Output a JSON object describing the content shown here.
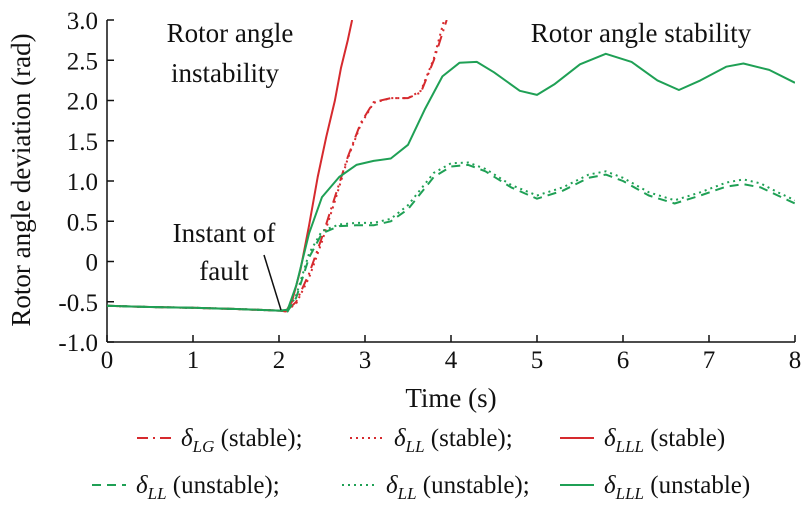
{
  "chart_data": {
    "type": "line",
    "xlabel": "Time (s)",
    "ylabel": "Rotor angle deviation (rad)",
    "xlim": [
      0,
      8
    ],
    "ylim": [
      -1.0,
      3.0
    ],
    "x_ticks": [
      "0",
      "1",
      "2",
      "3",
      "4",
      "5",
      "6",
      "7",
      "8"
    ],
    "y_ticks": [
      "-1.0",
      "-0.5",
      "0",
      "0.5",
      "1.0",
      "1.5",
      "2.0",
      "2.5",
      "3.0"
    ],
    "grid": false,
    "annotations": {
      "instability": [
        "Rotor angle",
        "instability"
      ],
      "stability": "Rotor angle stability",
      "fault": [
        "Instant of",
        "fault"
      ]
    },
    "series": [
      {
        "symbol": "δ",
        "sub": "LG",
        "suffix": " (stable);",
        "color": "#d62a2e",
        "dash": "dashdot",
        "points": [
          [
            0,
            -0.55
          ],
          [
            0.5,
            -0.565
          ],
          [
            1,
            -0.575
          ],
          [
            1.5,
            -0.59
          ],
          [
            2.0,
            -0.61
          ],
          [
            2.08,
            -0.62
          ],
          [
            2.2,
            -0.5
          ],
          [
            2.35,
            -0.15
          ],
          [
            2.5,
            0.3
          ],
          [
            2.65,
            0.8
          ],
          [
            2.8,
            1.3
          ],
          [
            2.95,
            1.72
          ],
          [
            3.1,
            1.98
          ],
          [
            3.3,
            2.03
          ],
          [
            3.5,
            2.03
          ],
          [
            3.65,
            2.1
          ],
          [
            3.8,
            2.5
          ],
          [
            3.95,
            3.0
          ]
        ]
      },
      {
        "symbol": "δ",
        "sub": "LL",
        "suffix": " (stable);",
        "color": "#d62a2e",
        "dash": "dotted",
        "points": [
          [
            0,
            -0.55
          ],
          [
            0.5,
            -0.565
          ],
          [
            1,
            -0.575
          ],
          [
            1.5,
            -0.59
          ],
          [
            2.0,
            -0.61
          ],
          [
            2.08,
            -0.62
          ],
          [
            2.2,
            -0.52
          ],
          [
            2.35,
            -0.2
          ],
          [
            2.5,
            0.25
          ],
          [
            2.65,
            0.75
          ],
          [
            2.8,
            1.28
          ],
          [
            2.95,
            1.7
          ],
          [
            3.1,
            1.97
          ],
          [
            3.3,
            2.03
          ],
          [
            3.5,
            2.03
          ],
          [
            3.65,
            2.12
          ],
          [
            3.8,
            2.52
          ],
          [
            3.92,
            3.0
          ]
        ]
      },
      {
        "symbol": "δ",
        "sub": "LLL",
        "suffix": " (stable)",
        "color": "#d62a2e",
        "dash": "solid",
        "points": [
          [
            0,
            -0.55
          ],
          [
            0.5,
            -0.565
          ],
          [
            1,
            -0.575
          ],
          [
            1.5,
            -0.59
          ],
          [
            2.0,
            -0.61
          ],
          [
            2.08,
            -0.62
          ],
          [
            2.15,
            -0.5
          ],
          [
            2.25,
            -0.1
          ],
          [
            2.35,
            0.45
          ],
          [
            2.45,
            1.05
          ],
          [
            2.55,
            1.55
          ],
          [
            2.65,
            2.0
          ],
          [
            2.72,
            2.4
          ],
          [
            2.8,
            2.75
          ],
          [
            2.85,
            3.0
          ]
        ]
      },
      {
        "symbol": "δ",
        "sub": "LL",
        "suffix": " (unstable);",
        "color": "#1fa055",
        "dash": "dashed",
        "points": [
          [
            0,
            -0.55
          ],
          [
            0.5,
            -0.565
          ],
          [
            1,
            -0.575
          ],
          [
            1.5,
            -0.59
          ],
          [
            2.0,
            -0.61
          ],
          [
            2.1,
            -0.62
          ],
          [
            2.2,
            -0.45
          ],
          [
            2.35,
            0.05
          ],
          [
            2.5,
            0.35
          ],
          [
            2.7,
            0.44
          ],
          [
            2.9,
            0.45
          ],
          [
            3.1,
            0.45
          ],
          [
            3.3,
            0.5
          ],
          [
            3.5,
            0.65
          ],
          [
            3.8,
            1.05
          ],
          [
            4.0,
            1.18
          ],
          [
            4.2,
            1.2
          ],
          [
            4.4,
            1.12
          ],
          [
            4.7,
            0.92
          ],
          [
            5.0,
            0.78
          ],
          [
            5.3,
            0.88
          ],
          [
            5.6,
            1.04
          ],
          [
            5.8,
            1.08
          ],
          [
            6.0,
            1.0
          ],
          [
            6.3,
            0.82
          ],
          [
            6.6,
            0.72
          ],
          [
            6.9,
            0.82
          ],
          [
            7.2,
            0.93
          ],
          [
            7.4,
            0.96
          ],
          [
            7.6,
            0.92
          ],
          [
            7.8,
            0.82
          ],
          [
            8.0,
            0.72
          ]
        ]
      },
      {
        "symbol": "δ",
        "sub": "LL",
        "suffix": " (unstable);",
        "color": "#1fa055",
        "dash": "dotted",
        "points": [
          [
            0,
            -0.55
          ],
          [
            0.5,
            -0.565
          ],
          [
            1,
            -0.575
          ],
          [
            1.5,
            -0.59
          ],
          [
            2.0,
            -0.61
          ],
          [
            2.1,
            -0.62
          ],
          [
            2.2,
            -0.42
          ],
          [
            2.35,
            0.1
          ],
          [
            2.5,
            0.38
          ],
          [
            2.7,
            0.46
          ],
          [
            2.9,
            0.48
          ],
          [
            3.1,
            0.48
          ],
          [
            3.3,
            0.53
          ],
          [
            3.5,
            0.7
          ],
          [
            3.8,
            1.1
          ],
          [
            4.0,
            1.22
          ],
          [
            4.2,
            1.23
          ],
          [
            4.4,
            1.15
          ],
          [
            4.7,
            0.95
          ],
          [
            5.0,
            0.82
          ],
          [
            5.3,
            0.92
          ],
          [
            5.6,
            1.08
          ],
          [
            5.8,
            1.12
          ],
          [
            6.0,
            1.04
          ],
          [
            6.3,
            0.86
          ],
          [
            6.6,
            0.76
          ],
          [
            6.9,
            0.86
          ],
          [
            7.2,
            0.98
          ],
          [
            7.4,
            1.02
          ],
          [
            7.6,
            0.97
          ],
          [
            7.8,
            0.86
          ],
          [
            8.0,
            0.76
          ]
        ]
      },
      {
        "symbol": "δ",
        "sub": "LLL",
        "suffix": " (unstable)",
        "color": "#1fa055",
        "dash": "solid",
        "points": [
          [
            0,
            -0.55
          ],
          [
            0.5,
            -0.565
          ],
          [
            1,
            -0.575
          ],
          [
            1.5,
            -0.59
          ],
          [
            2.0,
            -0.61
          ],
          [
            2.1,
            -0.6
          ],
          [
            2.2,
            -0.3
          ],
          [
            2.35,
            0.35
          ],
          [
            2.5,
            0.8
          ],
          [
            2.7,
            1.05
          ],
          [
            2.9,
            1.2
          ],
          [
            3.1,
            1.25
          ],
          [
            3.3,
            1.28
          ],
          [
            3.5,
            1.45
          ],
          [
            3.7,
            1.9
          ],
          [
            3.9,
            2.3
          ],
          [
            4.1,
            2.47
          ],
          [
            4.3,
            2.48
          ],
          [
            4.5,
            2.35
          ],
          [
            4.8,
            2.12
          ],
          [
            5.0,
            2.07
          ],
          [
            5.2,
            2.2
          ],
          [
            5.5,
            2.45
          ],
          [
            5.8,
            2.58
          ],
          [
            6.1,
            2.48
          ],
          [
            6.4,
            2.25
          ],
          [
            6.65,
            2.13
          ],
          [
            6.9,
            2.25
          ],
          [
            7.2,
            2.42
          ],
          [
            7.4,
            2.46
          ],
          [
            7.7,
            2.38
          ],
          [
            8.0,
            2.22
          ]
        ]
      }
    ]
  }
}
